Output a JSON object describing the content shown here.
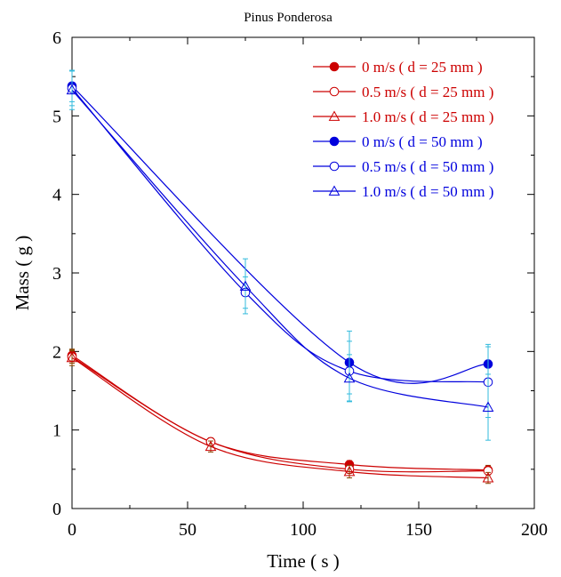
{
  "chart_data": {
    "type": "line",
    "title": "Pinus Ponderosa",
    "xlabel": "Time ( s )",
    "ylabel": "Mass ( g )",
    "xlim": [
      0,
      200
    ],
    "ylim": [
      0,
      6
    ],
    "xticks": [
      0,
      50,
      100,
      150,
      200
    ],
    "yticks": [
      0,
      1,
      2,
      3,
      4,
      5,
      6
    ],
    "xtick_labels": [
      "0",
      "50",
      "100",
      "150",
      "200"
    ],
    "ytick_labels": [
      "0",
      "1",
      "2",
      "3",
      "4",
      "5",
      "6"
    ],
    "grid": false,
    "legend_position": "top-right",
    "series": [
      {
        "name": "0 m/s ( d = 25 mm )",
        "color": "#cc0000",
        "marker": "filled-circle",
        "x": [
          0,
          60,
          120,
          180
        ],
        "y": [
          1.95,
          0.85,
          0.56,
          0.49
        ],
        "err": [
          0.08,
          0.05,
          0.05,
          0.06
        ]
      },
      {
        "name": "0.5 m/s ( d = 25 mm )",
        "color": "#cc0000",
        "marker": "open-circle",
        "x": [
          0,
          60,
          120,
          180
        ],
        "y": [
          1.93,
          0.85,
          0.5,
          0.48
        ],
        "err": [
          0.08,
          0.05,
          0.05,
          0.05
        ]
      },
      {
        "name": "1.0 m/s ( d = 25 mm )",
        "color": "#cc0000",
        "marker": "open-triangle",
        "x": [
          0,
          60,
          120,
          180
        ],
        "y": [
          1.92,
          0.79,
          0.47,
          0.39
        ],
        "err": [
          0.1,
          0.07,
          0.08,
          0.07
        ]
      },
      {
        "name": "0 m/s ( d = 50 mm )",
        "color": "#0000dd",
        "marker": "filled-circle",
        "x": [
          0,
          120,
          180
        ],
        "y": [
          5.38,
          1.86,
          1.84
        ],
        "err": [
          0.2,
          0.4,
          0.25
        ]
      },
      {
        "name": "0.5 m/s ( d = 50 mm )",
        "color": "#0000dd",
        "marker": "open-circle",
        "x": [
          0,
          75,
          120,
          180
        ],
        "y": [
          5.35,
          2.75,
          1.75,
          1.61
        ],
        "err": [
          0.22,
          0.2,
          0.38,
          0.45
        ]
      },
      {
        "name": "1.0 m/s ( d = 50 mm )",
        "color": "#0000dd",
        "marker": "open-triangle",
        "x": [
          0,
          75,
          120,
          180
        ],
        "y": [
          5.33,
          2.83,
          1.66,
          1.29
        ],
        "err": [
          0.25,
          0.35,
          0.3,
          0.42
        ]
      }
    ]
  }
}
